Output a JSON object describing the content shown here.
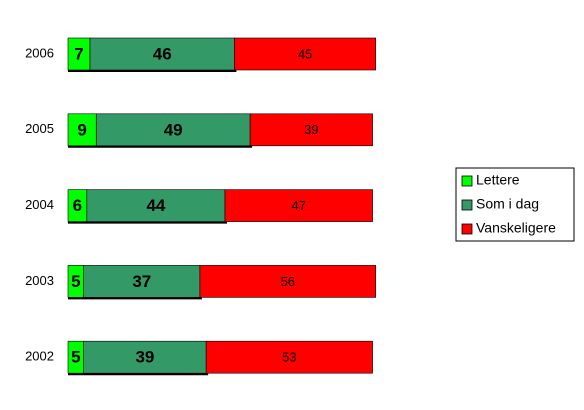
{
  "chart_data": {
    "type": "stacked-bar-horizontal",
    "categories": [
      "2006",
      "2005",
      "2004",
      "2003",
      "2002"
    ],
    "series": [
      {
        "name": "Lettere",
        "color": "#00ff00",
        "values": [
          7,
          9,
          6,
          5,
          5
        ]
      },
      {
        "name": "Som i dag",
        "color": "#339966",
        "values": [
          46,
          49,
          44,
          37,
          39
        ]
      },
      {
        "name": "Vanskeligere",
        "color": "#ff0000",
        "values": [
          45,
          39,
          47,
          56,
          53
        ]
      }
    ]
  }
}
